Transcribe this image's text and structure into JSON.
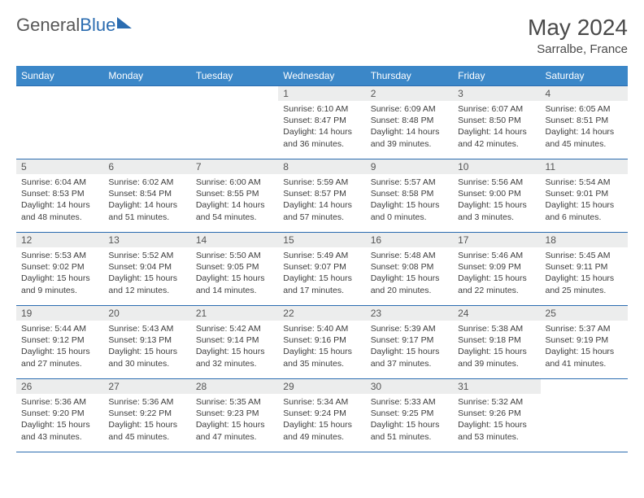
{
  "logo": {
    "text_gray": "General",
    "text_blue": "Blue"
  },
  "title": "May 2024",
  "location": "Sarralbe, France",
  "colors": {
    "header_bg": "#3b87c8",
    "rule": "#2b6cb0",
    "daynum_bg": "#eceded",
    "text": "#3d3d3d"
  },
  "weekdays": [
    "Sunday",
    "Monday",
    "Tuesday",
    "Wednesday",
    "Thursday",
    "Friday",
    "Saturday"
  ],
  "first_weekday_index": 3,
  "days": [
    {
      "n": 1,
      "sr": "6:10 AM",
      "ss": "8:47 PM",
      "dl": "14 hours and 36 minutes."
    },
    {
      "n": 2,
      "sr": "6:09 AM",
      "ss": "8:48 PM",
      "dl": "14 hours and 39 minutes."
    },
    {
      "n": 3,
      "sr": "6:07 AM",
      "ss": "8:50 PM",
      "dl": "14 hours and 42 minutes."
    },
    {
      "n": 4,
      "sr": "6:05 AM",
      "ss": "8:51 PM",
      "dl": "14 hours and 45 minutes."
    },
    {
      "n": 5,
      "sr": "6:04 AM",
      "ss": "8:53 PM",
      "dl": "14 hours and 48 minutes."
    },
    {
      "n": 6,
      "sr": "6:02 AM",
      "ss": "8:54 PM",
      "dl": "14 hours and 51 minutes."
    },
    {
      "n": 7,
      "sr": "6:00 AM",
      "ss": "8:55 PM",
      "dl": "14 hours and 54 minutes."
    },
    {
      "n": 8,
      "sr": "5:59 AM",
      "ss": "8:57 PM",
      "dl": "14 hours and 57 minutes."
    },
    {
      "n": 9,
      "sr": "5:57 AM",
      "ss": "8:58 PM",
      "dl": "15 hours and 0 minutes."
    },
    {
      "n": 10,
      "sr": "5:56 AM",
      "ss": "9:00 PM",
      "dl": "15 hours and 3 minutes."
    },
    {
      "n": 11,
      "sr": "5:54 AM",
      "ss": "9:01 PM",
      "dl": "15 hours and 6 minutes."
    },
    {
      "n": 12,
      "sr": "5:53 AM",
      "ss": "9:02 PM",
      "dl": "15 hours and 9 minutes."
    },
    {
      "n": 13,
      "sr": "5:52 AM",
      "ss": "9:04 PM",
      "dl": "15 hours and 12 minutes."
    },
    {
      "n": 14,
      "sr": "5:50 AM",
      "ss": "9:05 PM",
      "dl": "15 hours and 14 minutes."
    },
    {
      "n": 15,
      "sr": "5:49 AM",
      "ss": "9:07 PM",
      "dl": "15 hours and 17 minutes."
    },
    {
      "n": 16,
      "sr": "5:48 AM",
      "ss": "9:08 PM",
      "dl": "15 hours and 20 minutes."
    },
    {
      "n": 17,
      "sr": "5:46 AM",
      "ss": "9:09 PM",
      "dl": "15 hours and 22 minutes."
    },
    {
      "n": 18,
      "sr": "5:45 AM",
      "ss": "9:11 PM",
      "dl": "15 hours and 25 minutes."
    },
    {
      "n": 19,
      "sr": "5:44 AM",
      "ss": "9:12 PM",
      "dl": "15 hours and 27 minutes."
    },
    {
      "n": 20,
      "sr": "5:43 AM",
      "ss": "9:13 PM",
      "dl": "15 hours and 30 minutes."
    },
    {
      "n": 21,
      "sr": "5:42 AM",
      "ss": "9:14 PM",
      "dl": "15 hours and 32 minutes."
    },
    {
      "n": 22,
      "sr": "5:40 AM",
      "ss": "9:16 PM",
      "dl": "15 hours and 35 minutes."
    },
    {
      "n": 23,
      "sr": "5:39 AM",
      "ss": "9:17 PM",
      "dl": "15 hours and 37 minutes."
    },
    {
      "n": 24,
      "sr": "5:38 AM",
      "ss": "9:18 PM",
      "dl": "15 hours and 39 minutes."
    },
    {
      "n": 25,
      "sr": "5:37 AM",
      "ss": "9:19 PM",
      "dl": "15 hours and 41 minutes."
    },
    {
      "n": 26,
      "sr": "5:36 AM",
      "ss": "9:20 PM",
      "dl": "15 hours and 43 minutes."
    },
    {
      "n": 27,
      "sr": "5:36 AM",
      "ss": "9:22 PM",
      "dl": "15 hours and 45 minutes."
    },
    {
      "n": 28,
      "sr": "5:35 AM",
      "ss": "9:23 PM",
      "dl": "15 hours and 47 minutes."
    },
    {
      "n": 29,
      "sr": "5:34 AM",
      "ss": "9:24 PM",
      "dl": "15 hours and 49 minutes."
    },
    {
      "n": 30,
      "sr": "5:33 AM",
      "ss": "9:25 PM",
      "dl": "15 hours and 51 minutes."
    },
    {
      "n": 31,
      "sr": "5:32 AM",
      "ss": "9:26 PM",
      "dl": "15 hours and 53 minutes."
    }
  ],
  "labels": {
    "sunrise": "Sunrise:",
    "sunset": "Sunset:",
    "daylight": "Daylight:"
  }
}
